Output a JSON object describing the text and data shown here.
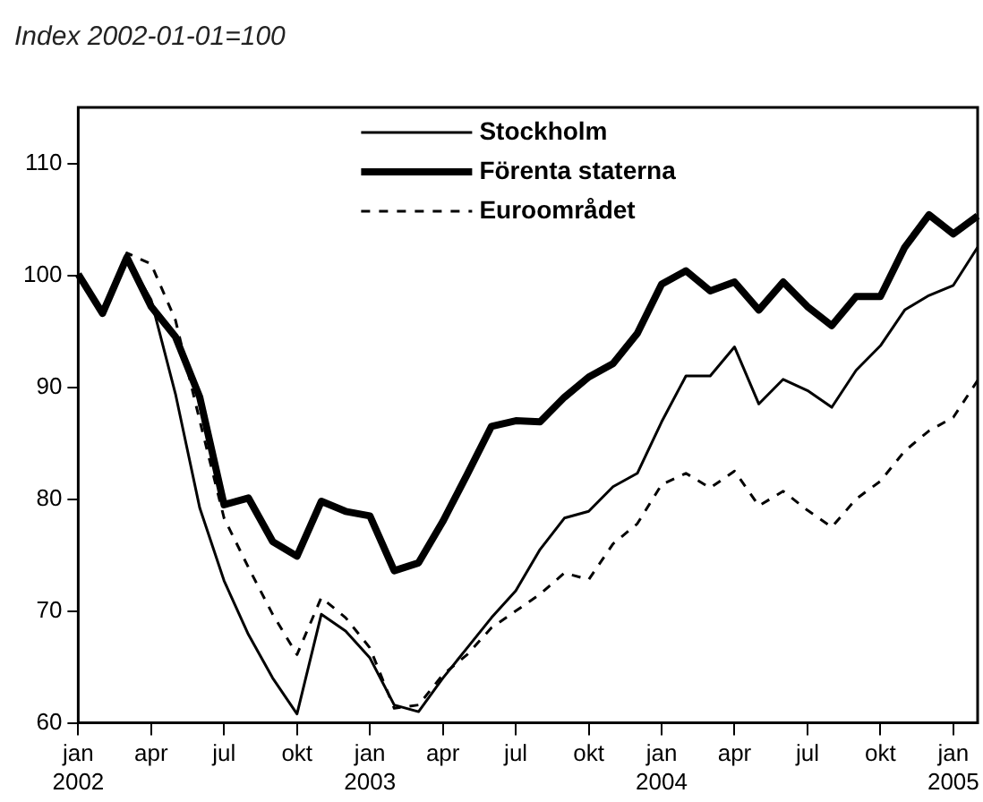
{
  "chart_data": {
    "type": "line",
    "title": "Index 2002-01-01=100",
    "categories": [
      "jan 2002",
      null,
      null,
      "apr",
      null,
      null,
      "jul",
      null,
      null,
      "okt",
      null,
      null,
      "jan 2003",
      null,
      null,
      "apr",
      null,
      null,
      "jul",
      null,
      null,
      "okt",
      null,
      null,
      "jan 2004",
      null,
      null,
      "apr",
      null,
      null,
      "jul",
      null,
      null,
      "okt",
      null,
      null,
      "jan 2005",
      null
    ],
    "series": [
      {
        "name": "Stockholm",
        "color": "#000000",
        "values": [
          100,
          96.6,
          101.6,
          97.8,
          89.4,
          79.2,
          72.7,
          67.9,
          64,
          60.8,
          69.7,
          68.2,
          65.8,
          61.6,
          61,
          64,
          66.7,
          69.4,
          71.8,
          75.5,
          78.3,
          78.9,
          81.1,
          82.3,
          86.9,
          91,
          91,
          93.6,
          88.5,
          90.7,
          89.7,
          88.2,
          91.5,
          93.7,
          96.9,
          98.2,
          99.1,
          102.5
        ]
      },
      {
        "name": "Förenta staterna",
        "color": "#000000",
        "values": [
          100.1,
          96.6,
          101.6,
          97.2,
          94.5,
          89.1,
          79.5,
          80.1,
          76.2,
          74.9,
          79.8,
          78.9,
          78.5,
          73.6,
          74.3,
          78,
          82.2,
          86.5,
          87,
          86.9,
          89.1,
          90.9,
          92.1,
          94.8,
          99.2,
          100.4,
          98.6,
          99.4,
          96.9,
          99.4,
          97.2,
          95.5,
          98.1,
          98.1,
          102.5,
          105.4,
          103.7,
          105.3
        ]
      },
      {
        "name": "Euroområdet",
        "color": "#000000",
        "line_style": "dashed",
        "values": [
          100,
          96.6,
          102,
          101,
          96,
          87,
          78.3,
          73.9,
          69.7,
          66.1,
          71.2,
          69.4,
          66.7,
          61.3,
          61.6,
          64.3,
          66.1,
          68.5,
          70,
          71.5,
          73.4,
          72.8,
          76,
          77.8,
          81.3,
          82.3,
          81,
          82.5,
          79.4,
          80.7,
          79,
          77.5,
          80,
          81.6,
          84.3,
          86.1,
          87.3,
          90.6
        ]
      }
    ],
    "ylim": [
      60,
      115
    ],
    "yticks": [
      60,
      70,
      80,
      90,
      100,
      110
    ],
    "grid": false,
    "legend": "top",
    "marker": "none",
    "line_style": "solid"
  }
}
